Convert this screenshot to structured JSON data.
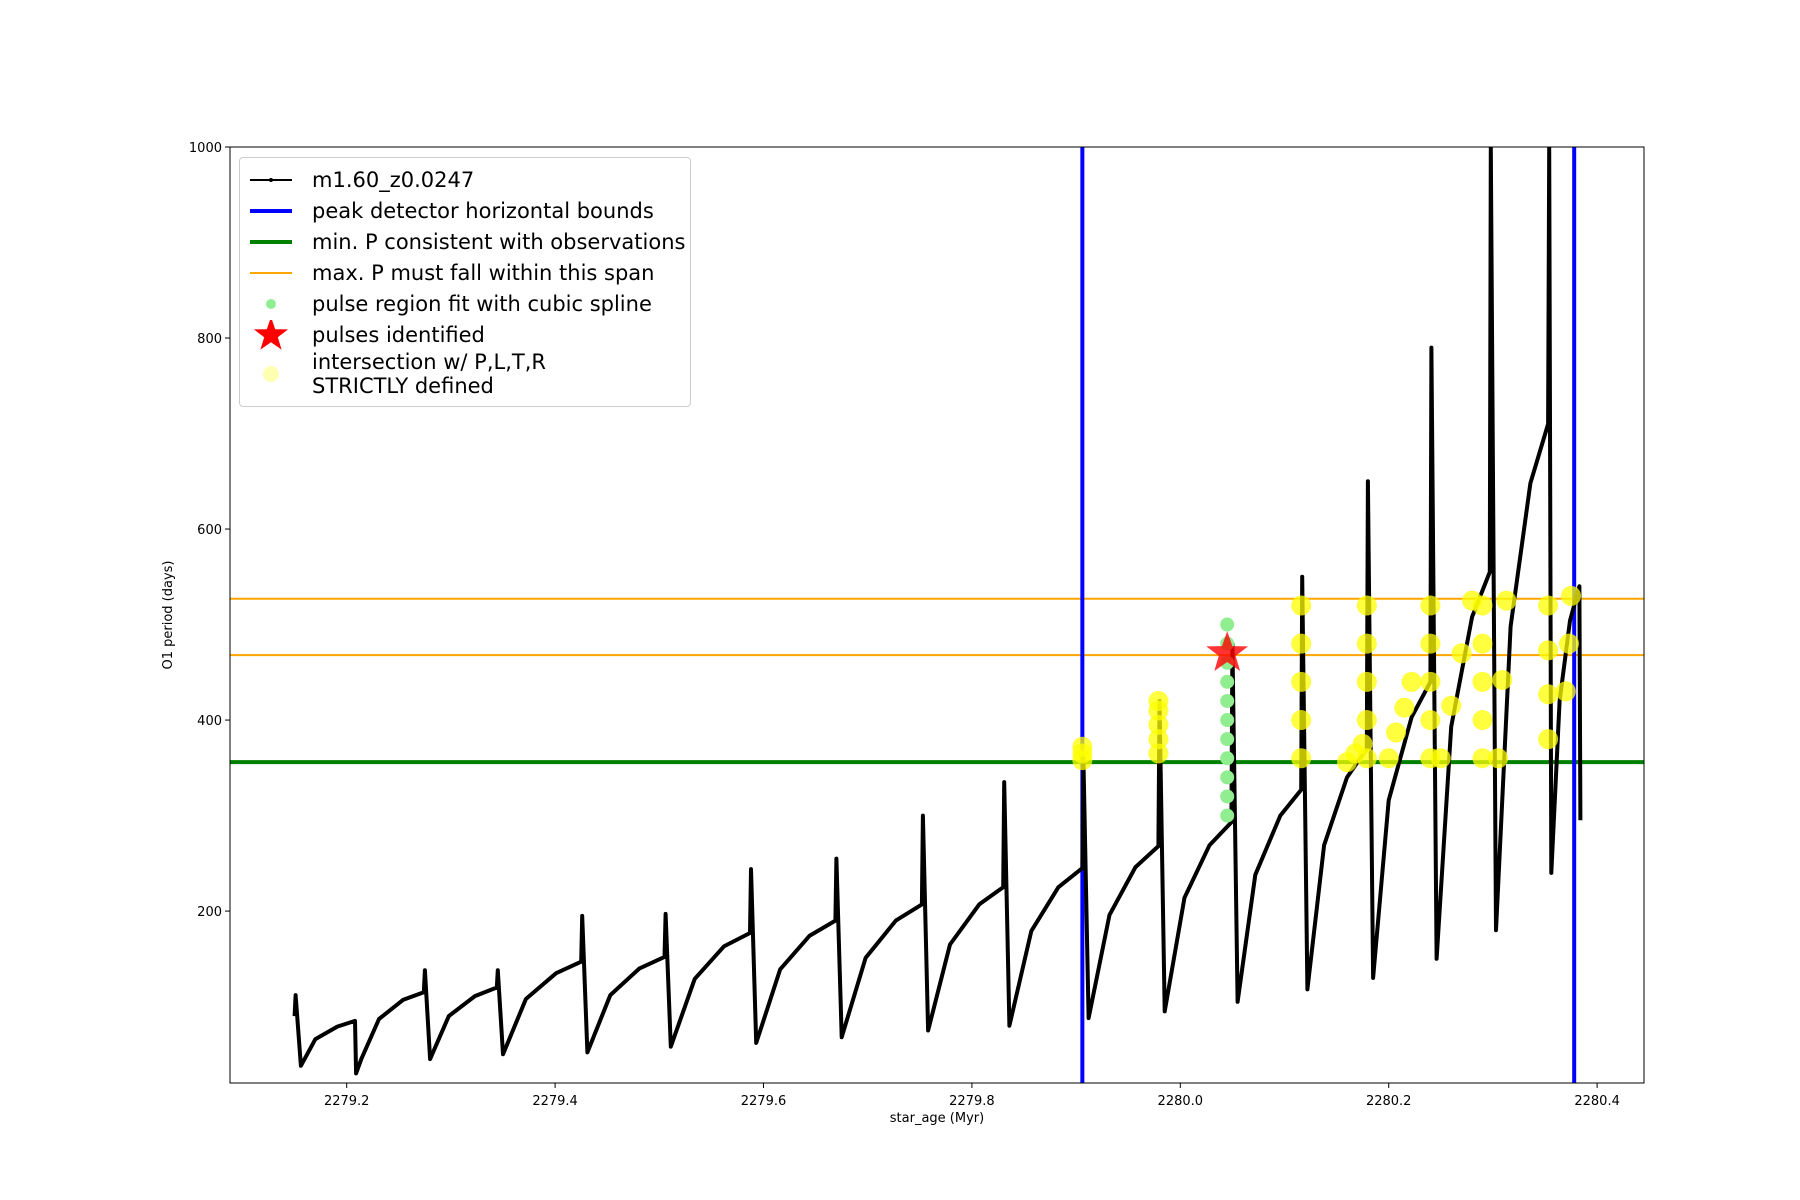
{
  "chart_data": {
    "type": "line",
    "xlabel": "star_age (Myr)",
    "ylabel": "O1 period (days)",
    "xlim": [
      2279.088,
      2280.445
    ],
    "ylim": [
      20,
      1000
    ],
    "xticks": [
      2279.2,
      2279.4,
      2279.6,
      2279.8,
      {
        "value": 2280.0,
        "label": "2280.0"
      },
      2280.2,
      2280.4
    ],
    "yticks": [
      200,
      400,
      600,
      800,
      1000
    ],
    "legend": "upper left",
    "series": [
      {
        "name": "m1.60_z0.0247",
        "kind": "line",
        "color": "#000000",
        "x": [
          2279.15,
          2279.151,
          2279.156,
          2279.17,
          2279.191,
          2279.208,
          2279.209,
          2279.214,
          2279.231,
          2279.254,
          2279.274,
          2279.275,
          2279.28,
          2279.298,
          2279.323,
          2279.344,
          2279.345,
          2279.35,
          2279.372,
          2279.401,
          2279.425,
          2279.426,
          2279.431,
          2279.453,
          2279.481,
          2279.505,
          2279.506,
          2279.511,
          2279.534,
          2279.562,
          2279.587,
          2279.588,
          2279.593,
          2279.616,
          2279.644,
          2279.669,
          2279.67,
          2279.675,
          2279.698,
          2279.727,
          2279.752,
          2279.753,
          2279.758,
          2279.779,
          2279.807,
          2279.83,
          2279.831,
          2279.836,
          2279.857,
          2279.883,
          2279.906,
          2279.907,
          2279.912,
          2279.932,
          2279.957,
          2279.979,
          2279.98,
          2279.985,
          2280.004,
          2280.028,
          2280.049,
          2280.05,
          2280.055,
          2280.072,
          2280.096,
          2280.116,
          2280.117,
          2280.122,
          2280.138,
          2280.16,
          2280.179,
          2280.18,
          2280.185,
          2280.2,
          2280.222,
          2280.24,
          2280.241,
          2280.246,
          2280.26,
          2280.28,
          2280.297,
          2280.298,
          2280.303,
          2280.317,
          2280.336,
          2280.353,
          2280.354,
          2280.356,
          2280.364,
          2280.374,
          2280.383,
          2280.384
        ],
        "values": [
          90,
          112,
          38,
          66,
          79,
          85,
          30,
          45,
          87,
          107,
          115,
          138,
          45,
          90,
          111,
          120,
          138,
          50,
          108,
          135,
          147,
          195,
          52,
          112,
          140,
          152,
          197,
          58,
          129,
          163,
          177,
          244,
          62,
          139,
          174,
          190,
          255,
          68,
          151,
          190,
          207,
          300,
          75,
          165,
          207,
          225,
          335,
          80,
          179,
          225,
          245,
          360,
          88,
          196,
          246,
          268,
          420,
          95,
          214,
          269,
          293,
          480,
          105,
          238,
          300,
          327,
          550,
          118,
          269,
          340,
          370,
          650,
          130,
          316,
          403,
          440,
          790,
          150,
          393,
          508,
          555,
          1000,
          180,
          498,
          648,
          710,
          1000,
          240,
          420,
          504,
          540,
          295
        ]
      },
      {
        "name": "peak detector horizontal bounds",
        "kind": "vline",
        "color": "#0000ff",
        "x": [
          2279.906,
          2280.378
        ]
      },
      {
        "name": "min. P consistent with observations",
        "kind": "hline",
        "color": "#008000",
        "values": [
          356
        ]
      },
      {
        "name": "max. P must fall within this span",
        "kind": "hline",
        "color": "#ffa500",
        "values": [
          468,
          527
        ]
      },
      {
        "name": "pulse region fit with cubic spline",
        "kind": "scatter",
        "color": "#90ee90",
        "x": [
          2280.045,
          2280.045,
          2280.045,
          2280.045,
          2280.045,
          2280.045,
          2280.045,
          2280.045,
          2280.045,
          2280.045,
          2280.045
        ],
        "values": [
          300,
          320,
          340,
          360,
          380,
          400,
          420,
          440,
          460,
          480,
          500
        ]
      },
      {
        "name": "pulses identified",
        "kind": "star",
        "color": "#ff0000",
        "x": [
          2280.045
        ],
        "values": [
          470
        ]
      },
      {
        "name": "intersection w/ P,L,T,R\nSTRICTLY defined",
        "kind": "scatter",
        "color": "#ffff00",
        "x": [
          2279.906,
          2279.906,
          2279.906,
          2279.979,
          2279.979,
          2279.979,
          2279.979,
          2279.979,
          2280.116,
          2280.116,
          2280.116,
          2280.116,
          2280.116,
          2280.16,
          2280.168,
          2280.175,
          2280.179,
          2280.179,
          2280.179,
          2280.179,
          2280.179,
          2280.2,
          2280.207,
          2280.215,
          2280.222,
          2280.24,
          2280.24,
          2280.24,
          2280.24,
          2280.24,
          2280.25,
          2280.26,
          2280.27,
          2280.28,
          2280.29,
          2280.29,
          2280.29,
          2280.29,
          2280.29,
          2280.305,
          2280.309,
          2280.313,
          2280.353,
          2280.353,
          2280.353,
          2280.353,
          2280.37,
          2280.373,
          2280.375
        ],
        "values": [
          358,
          365,
          372,
          365,
          380,
          395,
          410,
          420,
          360,
          400,
          440,
          480,
          520,
          356,
          365,
          375,
          360,
          400,
          440,
          480,
          520,
          360,
          387,
          413,
          440,
          360,
          400,
          440,
          480,
          520,
          360,
          415,
          470,
          525,
          360,
          400,
          440,
          480,
          520,
          360,
          442,
          525,
          380,
          427,
          473,
          520,
          430,
          480,
          530
        ]
      }
    ]
  }
}
